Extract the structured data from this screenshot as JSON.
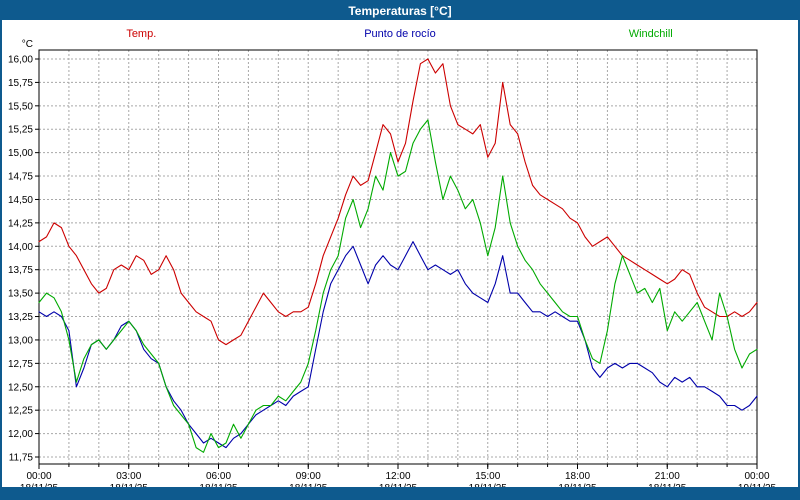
{
  "window": {
    "title": "Temperaturas [°C]"
  },
  "chart_data": {
    "type": "line",
    "title": "Temperaturas [°C]",
    "y_unit": "°C",
    "ylim": [
      11.75,
      16.0
    ],
    "y_step": 0.25,
    "x_hours": 24,
    "x_step_hours": 0.25,
    "x_major_every_hours": 3,
    "grid": {
      "vertical_every_hours": 1,
      "style": "dashed"
    },
    "x_major_ticks": [
      {
        "time": "00:00",
        "date": "18/11/25"
      },
      {
        "time": "03:00",
        "date": "18/11/25"
      },
      {
        "time": "06:00",
        "date": "18/11/25"
      },
      {
        "time": "09:00",
        "date": "18/11/25"
      },
      {
        "time": "12:00",
        "date": "18/11/25"
      },
      {
        "time": "15:00",
        "date": "18/11/25"
      },
      {
        "time": "18:00",
        "date": "18/11/25"
      },
      {
        "time": "21:00",
        "date": "18/11/25"
      },
      {
        "time": "00:00",
        "date": "19/11/25"
      }
    ],
    "series": [
      {
        "name": "Temp.",
        "color": "#cc0000",
        "values": [
          14.05,
          14.1,
          14.25,
          14.2,
          14.0,
          13.9,
          13.75,
          13.6,
          13.5,
          13.55,
          13.75,
          13.8,
          13.75,
          13.9,
          13.85,
          13.7,
          13.75,
          13.9,
          13.75,
          13.5,
          13.4,
          13.3,
          13.25,
          13.2,
          13.0,
          12.95,
          13.0,
          13.05,
          13.2,
          13.35,
          13.5,
          13.4,
          13.3,
          13.25,
          13.3,
          13.3,
          13.35,
          13.6,
          13.9,
          14.1,
          14.3,
          14.55,
          14.75,
          14.65,
          14.7,
          15.0,
          15.3,
          15.2,
          14.9,
          15.1,
          15.55,
          15.95,
          16.0,
          15.85,
          15.95,
          15.5,
          15.3,
          15.25,
          15.2,
          15.3,
          14.95,
          15.1,
          15.75,
          15.3,
          15.2,
          14.9,
          14.65,
          14.55,
          14.5,
          14.45,
          14.4,
          14.3,
          14.25,
          14.1,
          14.0,
          14.05,
          14.1,
          14.0,
          13.9,
          13.85,
          13.8,
          13.75,
          13.7,
          13.65,
          13.6,
          13.65,
          13.75,
          13.7,
          13.5,
          13.35,
          13.3,
          13.25,
          13.25,
          13.3,
          13.25,
          13.3,
          13.4
        ]
      },
      {
        "name": "Punto de rocío",
        "color": "#0000aa",
        "values": [
          13.3,
          13.25,
          13.3,
          13.25,
          13.1,
          12.5,
          12.7,
          12.95,
          13.0,
          12.9,
          13.0,
          13.15,
          13.2,
          13.1,
          12.9,
          12.8,
          12.75,
          12.5,
          12.35,
          12.25,
          12.1,
          12.0,
          11.9,
          11.95,
          11.9,
          11.85,
          11.95,
          12.0,
          12.1,
          12.2,
          12.25,
          12.3,
          12.35,
          12.3,
          12.4,
          12.45,
          12.5,
          12.9,
          13.3,
          13.6,
          13.75,
          13.9,
          14.0,
          13.8,
          13.6,
          13.8,
          13.9,
          13.8,
          13.75,
          13.9,
          14.05,
          13.9,
          13.75,
          13.8,
          13.75,
          13.7,
          13.75,
          13.6,
          13.5,
          13.45,
          13.4,
          13.6,
          13.9,
          13.5,
          13.5,
          13.4,
          13.3,
          13.3,
          13.25,
          13.3,
          13.25,
          13.2,
          13.2,
          13.0,
          12.7,
          12.6,
          12.7,
          12.75,
          12.7,
          12.75,
          12.75,
          12.7,
          12.65,
          12.55,
          12.5,
          12.6,
          12.55,
          12.6,
          12.5,
          12.5,
          12.45,
          12.4,
          12.3,
          12.3,
          12.25,
          12.3,
          12.4
        ]
      },
      {
        "name": "Windchill",
        "color": "#00aa00",
        "values": [
          13.4,
          13.5,
          13.45,
          13.3,
          13.0,
          12.55,
          12.8,
          12.95,
          13.0,
          12.9,
          13.0,
          13.1,
          13.2,
          13.1,
          12.95,
          12.85,
          12.75,
          12.5,
          12.3,
          12.2,
          12.1,
          11.85,
          11.8,
          12.0,
          11.85,
          11.9,
          12.1,
          11.95,
          12.1,
          12.25,
          12.3,
          12.3,
          12.4,
          12.35,
          12.45,
          12.55,
          12.75,
          13.1,
          13.5,
          13.75,
          13.9,
          14.3,
          14.5,
          14.2,
          14.4,
          14.75,
          14.6,
          15.0,
          14.75,
          14.8,
          15.1,
          15.25,
          15.35,
          14.9,
          14.5,
          14.75,
          14.6,
          14.4,
          14.5,
          14.25,
          13.9,
          14.2,
          14.75,
          14.25,
          14.0,
          13.85,
          13.75,
          13.6,
          13.5,
          13.4,
          13.3,
          13.25,
          13.25,
          13.0,
          12.8,
          12.75,
          13.1,
          13.6,
          13.9,
          13.7,
          13.5,
          13.55,
          13.4,
          13.55,
          13.1,
          13.3,
          13.2,
          13.3,
          13.4,
          13.2,
          13.0,
          13.5,
          13.25,
          12.9,
          12.7,
          12.85,
          12.9
        ]
      }
    ]
  },
  "colors": {
    "frame_blue": "#0e5a8e",
    "grid_gray": "#a8a8a8",
    "axis_black": "#000000"
  }
}
